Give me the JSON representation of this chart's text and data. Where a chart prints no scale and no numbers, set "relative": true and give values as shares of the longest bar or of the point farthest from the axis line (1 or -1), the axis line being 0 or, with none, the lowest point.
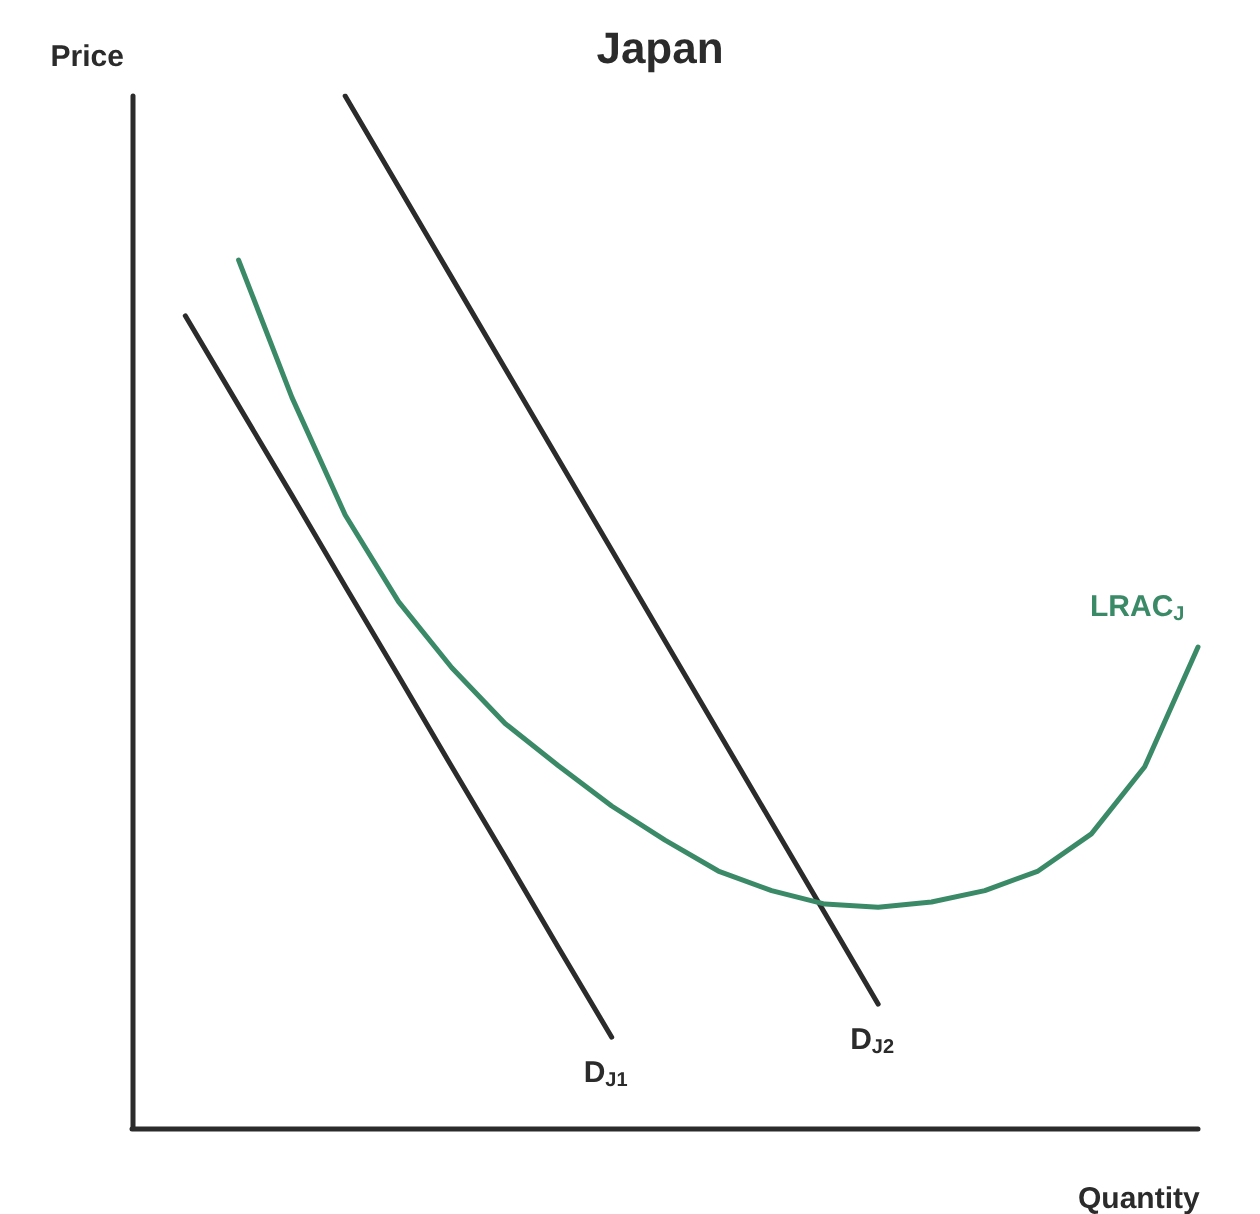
{
  "chart_data": {
    "type": "line",
    "title": "Japan",
    "xlabel": "Quantity",
    "ylabel": "Price",
    "relative": true,
    "grid": false,
    "legend": false,
    "marker": "none",
    "line_style": "solid",
    "categories": [
      null,
      null,
      null,
      null,
      null,
      null,
      null,
      null,
      null,
      null,
      null,
      null,
      null,
      null,
      null,
      null,
      null,
      null,
      null,
      null,
      null
    ],
    "series": [
      {
        "name": "D$_{J1}$",
        "color": "#2b2b2b",
        "values": [
          null,
          0.787,
          0.7,
          0.613,
          0.525,
          0.438,
          0.35,
          0.263,
          0.175,
          0.088,
          null,
          null,
          null,
          null,
          null,
          null,
          null,
          null,
          null,
          null,
          null
        ]
      },
      {
        "name": "D$_{J2}$",
        "color": "#2b2b2b",
        "values": [
          null,
          null,
          null,
          null,
          1.0,
          0.912,
          0.824,
          0.736,
          0.648,
          0.56,
          0.472,
          0.384,
          0.296,
          0.208,
          0.12,
          null,
          null,
          null,
          null,
          null,
          null
        ]
      },
      {
        "name": "LRAC$_{J}$",
        "color": "#3a8a67",
        "values": [
          null,
          null,
          0.841,
          0.708,
          0.594,
          0.51,
          0.446,
          0.392,
          0.351,
          0.312,
          0.279,
          0.249,
          0.23,
          0.217,
          0.214,
          0.219,
          0.23,
          0.249,
          0.285,
          0.35,
          0.466
        ]
      }
    ]
  }
}
